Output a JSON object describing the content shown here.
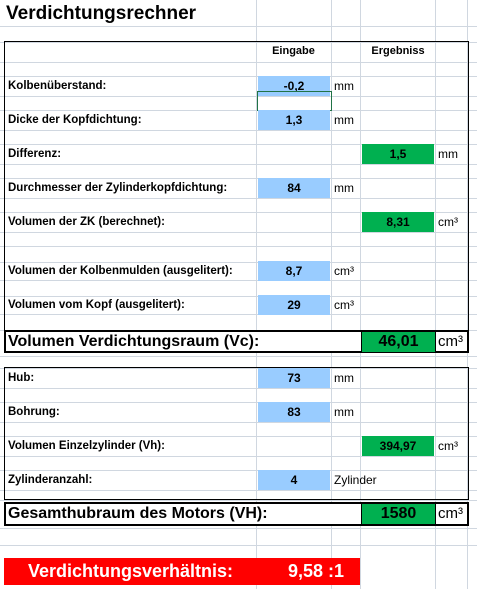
{
  "title": "Verdichtungsrechner",
  "headers": {
    "input": "Eingabe",
    "result": "Ergebniss"
  },
  "colors": {
    "input_fill": "#99ccff",
    "result_fill": "#00b050",
    "final_fill": "#ff0000"
  },
  "rows": {
    "kolbenueberstand": {
      "label": "Kolbenüberstand:",
      "value": "-0,2",
      "unit": "mm"
    },
    "kopfdichtung_dicke": {
      "label": "Dicke der Kopfdichtung:",
      "value": "1,3",
      "unit": "mm"
    },
    "differenz": {
      "label": "Differenz:",
      "value": "1,5",
      "unit": "mm"
    },
    "durchmesser": {
      "label": "Durchmesser der Zylinderkopfdichtung:",
      "value": "84",
      "unit": "mm"
    },
    "volumen_zk": {
      "label": "Volumen der ZK (berechnet):",
      "value": "8,31",
      "unit": "cm³"
    },
    "kolbenmulden": {
      "label": "Volumen der Kolbenmulden (ausgelitert):",
      "value": "8,7",
      "unit": "cm³"
    },
    "kopf": {
      "label": "Volumen vom Kopf (ausgelitert):",
      "value": "29",
      "unit": "cm³"
    },
    "vc": {
      "label": "Volumen Verdichtungsraum (Vc):",
      "value": "46,01",
      "unit": "cm³"
    },
    "hub": {
      "label": "Hub:",
      "value": "73",
      "unit": "mm"
    },
    "bohrung": {
      "label": "Bohrung:",
      "value": "83",
      "unit": "mm"
    },
    "vh_einzel": {
      "label": "Volumen Einzelzylinder (Vh):",
      "value": "394,97",
      "unit": "cm³"
    },
    "zylinderanzahl": {
      "label": "Zylinderanzahl:",
      "value": "4",
      "unit": "Zylinder"
    },
    "vh_gesamt": {
      "label": "Gesamthubraum des Motors (VH):",
      "value": "1580",
      "unit": "cm³"
    }
  },
  "result": {
    "label": "Verdichtungsverhältnis:",
    "value": "9,58 :1"
  }
}
